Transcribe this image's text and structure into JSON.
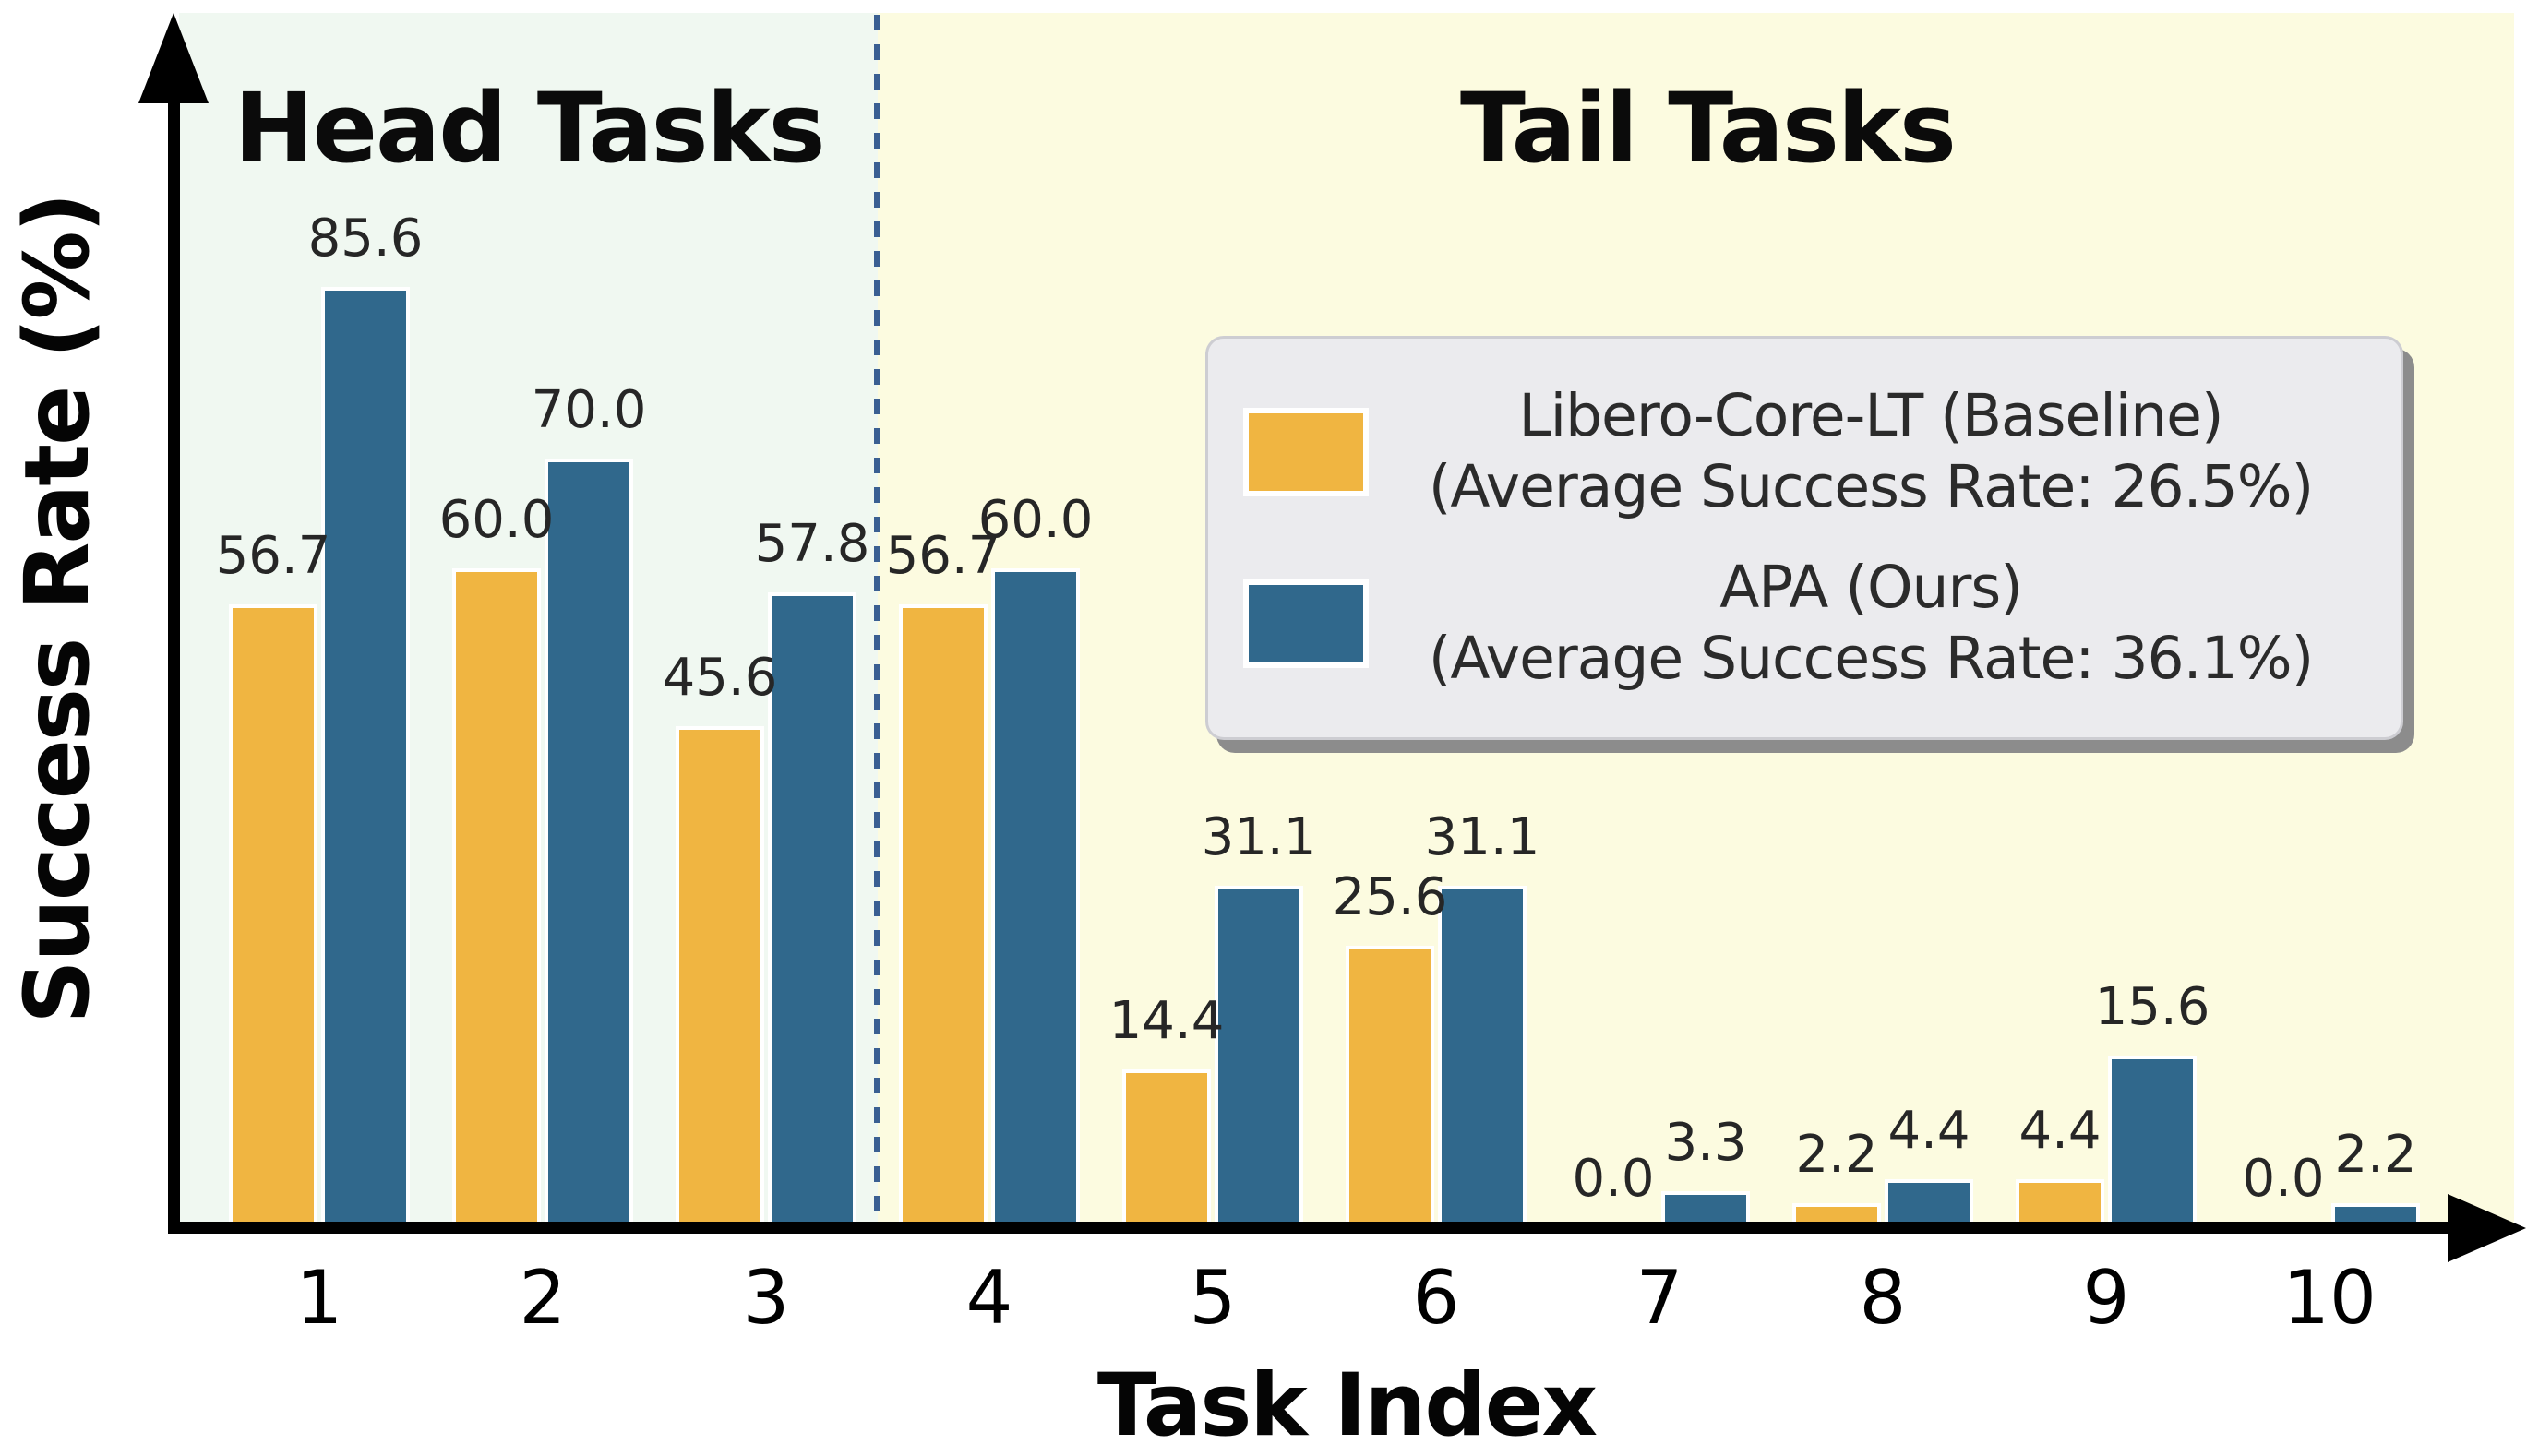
{
  "chart_data": {
    "type": "bar",
    "xlabel": "Task Index",
    "ylabel": "Success Rate (%)",
    "categories": [
      "1",
      "2",
      "3",
      "4",
      "5",
      "6",
      "7",
      "8",
      "9",
      "10"
    ],
    "series": [
      {
        "name": "Libero-Core-LT (Baseline)",
        "subtitle": "(Average Success Rate: 26.5%)",
        "color": "#F0B541",
        "values": [
          56.7,
          60.0,
          45.6,
          56.7,
          14.4,
          25.6,
          0.0,
          2.2,
          4.4,
          0.0
        ]
      },
      {
        "name": "APA (Ours)",
        "subtitle": "(Average Success Rate: 36.1%)",
        "color": "#30688C",
        "values": [
          85.6,
          70.0,
          57.8,
          60.0,
          31.1,
          31.1,
          3.3,
          4.4,
          15.6,
          2.2
        ]
      }
    ],
    "regions": [
      {
        "label": "Head Tasks",
        "bg": "#F0F8F1",
        "categories": [
          "1",
          "2",
          "3"
        ]
      },
      {
        "label": "Tail Tasks",
        "bg": "#FCFBE0",
        "categories": [
          "4",
          "5",
          "6",
          "7",
          "8",
          "9",
          "10"
        ]
      }
    ],
    "separator": {
      "style": "dotted",
      "color": "#3A5F92",
      "between_categories": [
        "3",
        "4"
      ]
    },
    "ylim": [
      0,
      110
    ],
    "grid": false,
    "value_labels": true,
    "value_label_format": "0.0",
    "legend_position": "upper right",
    "colors": {
      "axis": "#000000",
      "value_label": "#262626",
      "tick_label": "#000000",
      "legend_bg": "#EBEBEE",
      "legend_border": "#CDCDD2",
      "legend_shadow": "#8C8C8C",
      "page_bg": "#FFFFFF"
    }
  }
}
